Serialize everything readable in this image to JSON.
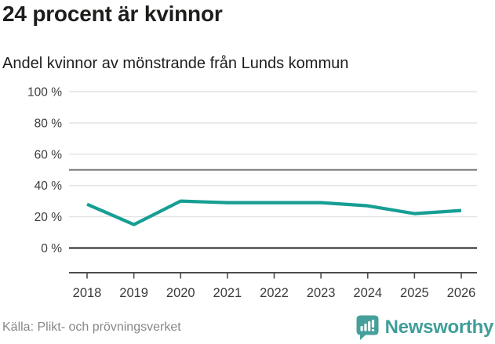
{
  "header": {
    "title": "24 procent är kvinnor",
    "subtitle": "Andel kvinnor av mönstrande från Lunds kommun"
  },
  "chart_data": {
    "type": "line",
    "title": "Andel kvinnor av mönstrande från Lunds kommun",
    "x": [
      "2018",
      "2019",
      "2020",
      "2021",
      "2022",
      "2023",
      "2024",
      "2025",
      "2026"
    ],
    "series": [
      {
        "name": "Andel kvinnor",
        "values": [
          28,
          15,
          30,
          29,
          29,
          29,
          27,
          22,
          24
        ],
        "color": "#169e93"
      }
    ],
    "xlabel": "",
    "ylabel": "",
    "ylim": [
      0,
      100
    ],
    "yticks": [
      0,
      20,
      40,
      60,
      80,
      100
    ],
    "ytick_suffix": " %",
    "reference_line_y": 50,
    "grid": true,
    "legend": false
  },
  "footer": {
    "source": "Källa: Plikt- och prövningsverket",
    "brand": "Newsworthy"
  },
  "colors": {
    "line": "#169e93",
    "brand_teal": "#3f9e99",
    "logo_bubble": "#45a09b",
    "title_text": "#1d1d1b",
    "axis_text": "#3c3c3c",
    "muted_text": "#878787",
    "gridline_light": "#e2e2e2",
    "gridline_mid": "#7a7a7a",
    "gridline_dark": "#3b3b3b",
    "axis_line": "#4d4d4d"
  }
}
